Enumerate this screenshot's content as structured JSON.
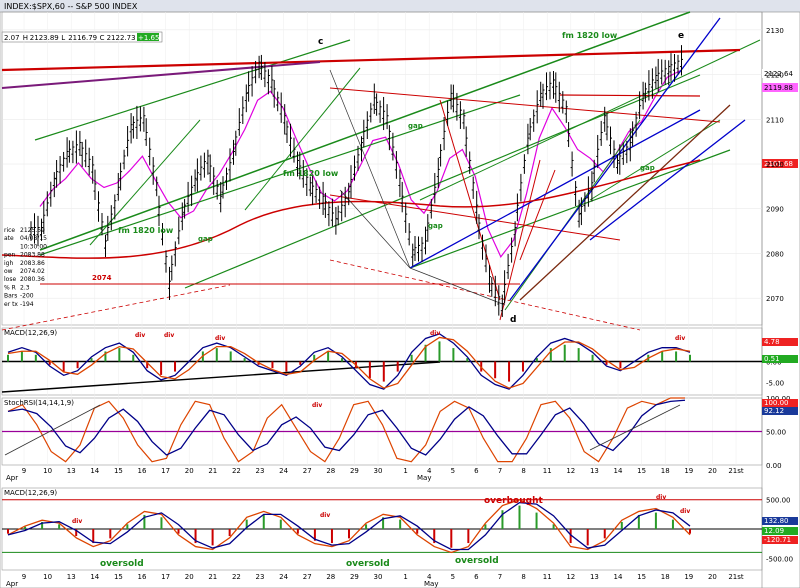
{
  "window": {
    "title": "INDEX:$SPX,60 -- S&P 500 INDEX",
    "quote_values": [
      "2.07",
      "H",
      "2123.89",
      "L",
      "2116.79",
      "C",
      "2122.73",
      "+1.65"
    ]
  },
  "info_panel": [
    "rice",
    "2125.69",
    "ate",
    "04/08/15",
    "",
    "10:30:00",
    "pen",
    "2083.88",
    "igh",
    "2083.86",
    "ow",
    "2074.02",
    "lose",
    "2080.36",
    "% R",
    "2.3",
    "Bars",
    "-200",
    "er tx",
    "-194"
  ],
  "annotations": {
    "c": "c",
    "d": "d",
    "e": "e",
    "fm1820_top": "fm 1820 low",
    "fm1820_mid": "fm 1820 low",
    "fm1820_left": "fm 1820 low",
    "gap1": "gap",
    "gap2": "gap",
    "gap3": "gap",
    "gap4": "gap",
    "level_2074": "2074",
    "div": "div",
    "overbought": "overbought",
    "oversold": "oversold"
  },
  "indicators": {
    "macd1": "MACD(12,26,9)",
    "stochrsi": "StochRSI(14,14,1,9)",
    "macd2": "MACD(12,26,9)"
  },
  "price_badges": {
    "last": "2122.64",
    "second": "2119.88",
    "third": "2101.68"
  },
  "macd1_badges": [
    "4.78",
    "0.51"
  ],
  "stoch_badges": [
    "100.00",
    "92.12"
  ],
  "macd2_badges": [
    "132.80",
    "12.09",
    "-120.71"
  ],
  "colors": {
    "up_bar": "#000000",
    "trend_green": "#1a8a1a",
    "trend_red": "#cc0000",
    "trend_blue": "#0000cc",
    "trend_brown": "#7a2a10",
    "ma_magenta": "#e000e0",
    "macd_line": "#000088",
    "signal_line": "#dd4400",
    "hist_green": "#2a9a2a",
    "hist_red": "#cc0000"
  },
  "chart_data": [
    {
      "type": "line",
      "panel": "price",
      "series": [
        {
          "values": [
            2085,
            2096,
            2102,
            2104,
            2099,
            2082,
            2094,
            2108,
            2110,
            2095,
            2073,
            2088,
            2096,
            2101,
            2092,
            2102,
            2115,
            2122,
            2118,
            2110,
            2100,
            2095,
            2092,
            2087,
            2093,
            2104,
            2114,
            2110,
            2096,
            2080,
            2082,
            2098,
            2115,
            2110,
            2090,
            2074,
            2068,
            2085,
            2105,
            2115,
            2118,
            2112,
            2088,
            2095,
            2110,
            2100,
            2104,
            2115,
            2119,
            2121,
            2122.6
          ]
        }
      ],
      "y_ticks": [
        2070,
        2080,
        2090,
        2100,
        2110,
        2120,
        2130
      ],
      "ylim": [
        2064,
        2134
      ],
      "x_ticks": [
        "9",
        "10",
        "13",
        "14",
        "15",
        "16",
        "17",
        "20",
        "21",
        "22",
        "23",
        "24",
        "27",
        "28",
        "29",
        "30",
        "1",
        "4",
        "5",
        "6",
        "7",
        "8",
        "11",
        "12",
        "13",
        "14",
        "15",
        "18",
        "19",
        "20",
        "21st"
      ],
      "x_month_labels": [
        "Apr",
        "May"
      ]
    },
    {
      "type": "bar",
      "panel": "macd1",
      "y_ticks": [
        "5.00",
        "0.00",
        "-5.00"
      ],
      "ylim": [
        -8,
        8
      ]
    },
    {
      "type": "line",
      "panel": "stochrsi",
      "y_ticks": [
        "100.00",
        "50.00",
        "0.00"
      ],
      "ylim": [
        0,
        100
      ]
    },
    {
      "type": "bar",
      "panel": "macd2",
      "y_ticks": [
        "500.00",
        "0.00",
        "-500.00"
      ],
      "ylim": [
        -700,
        700
      ]
    }
  ]
}
